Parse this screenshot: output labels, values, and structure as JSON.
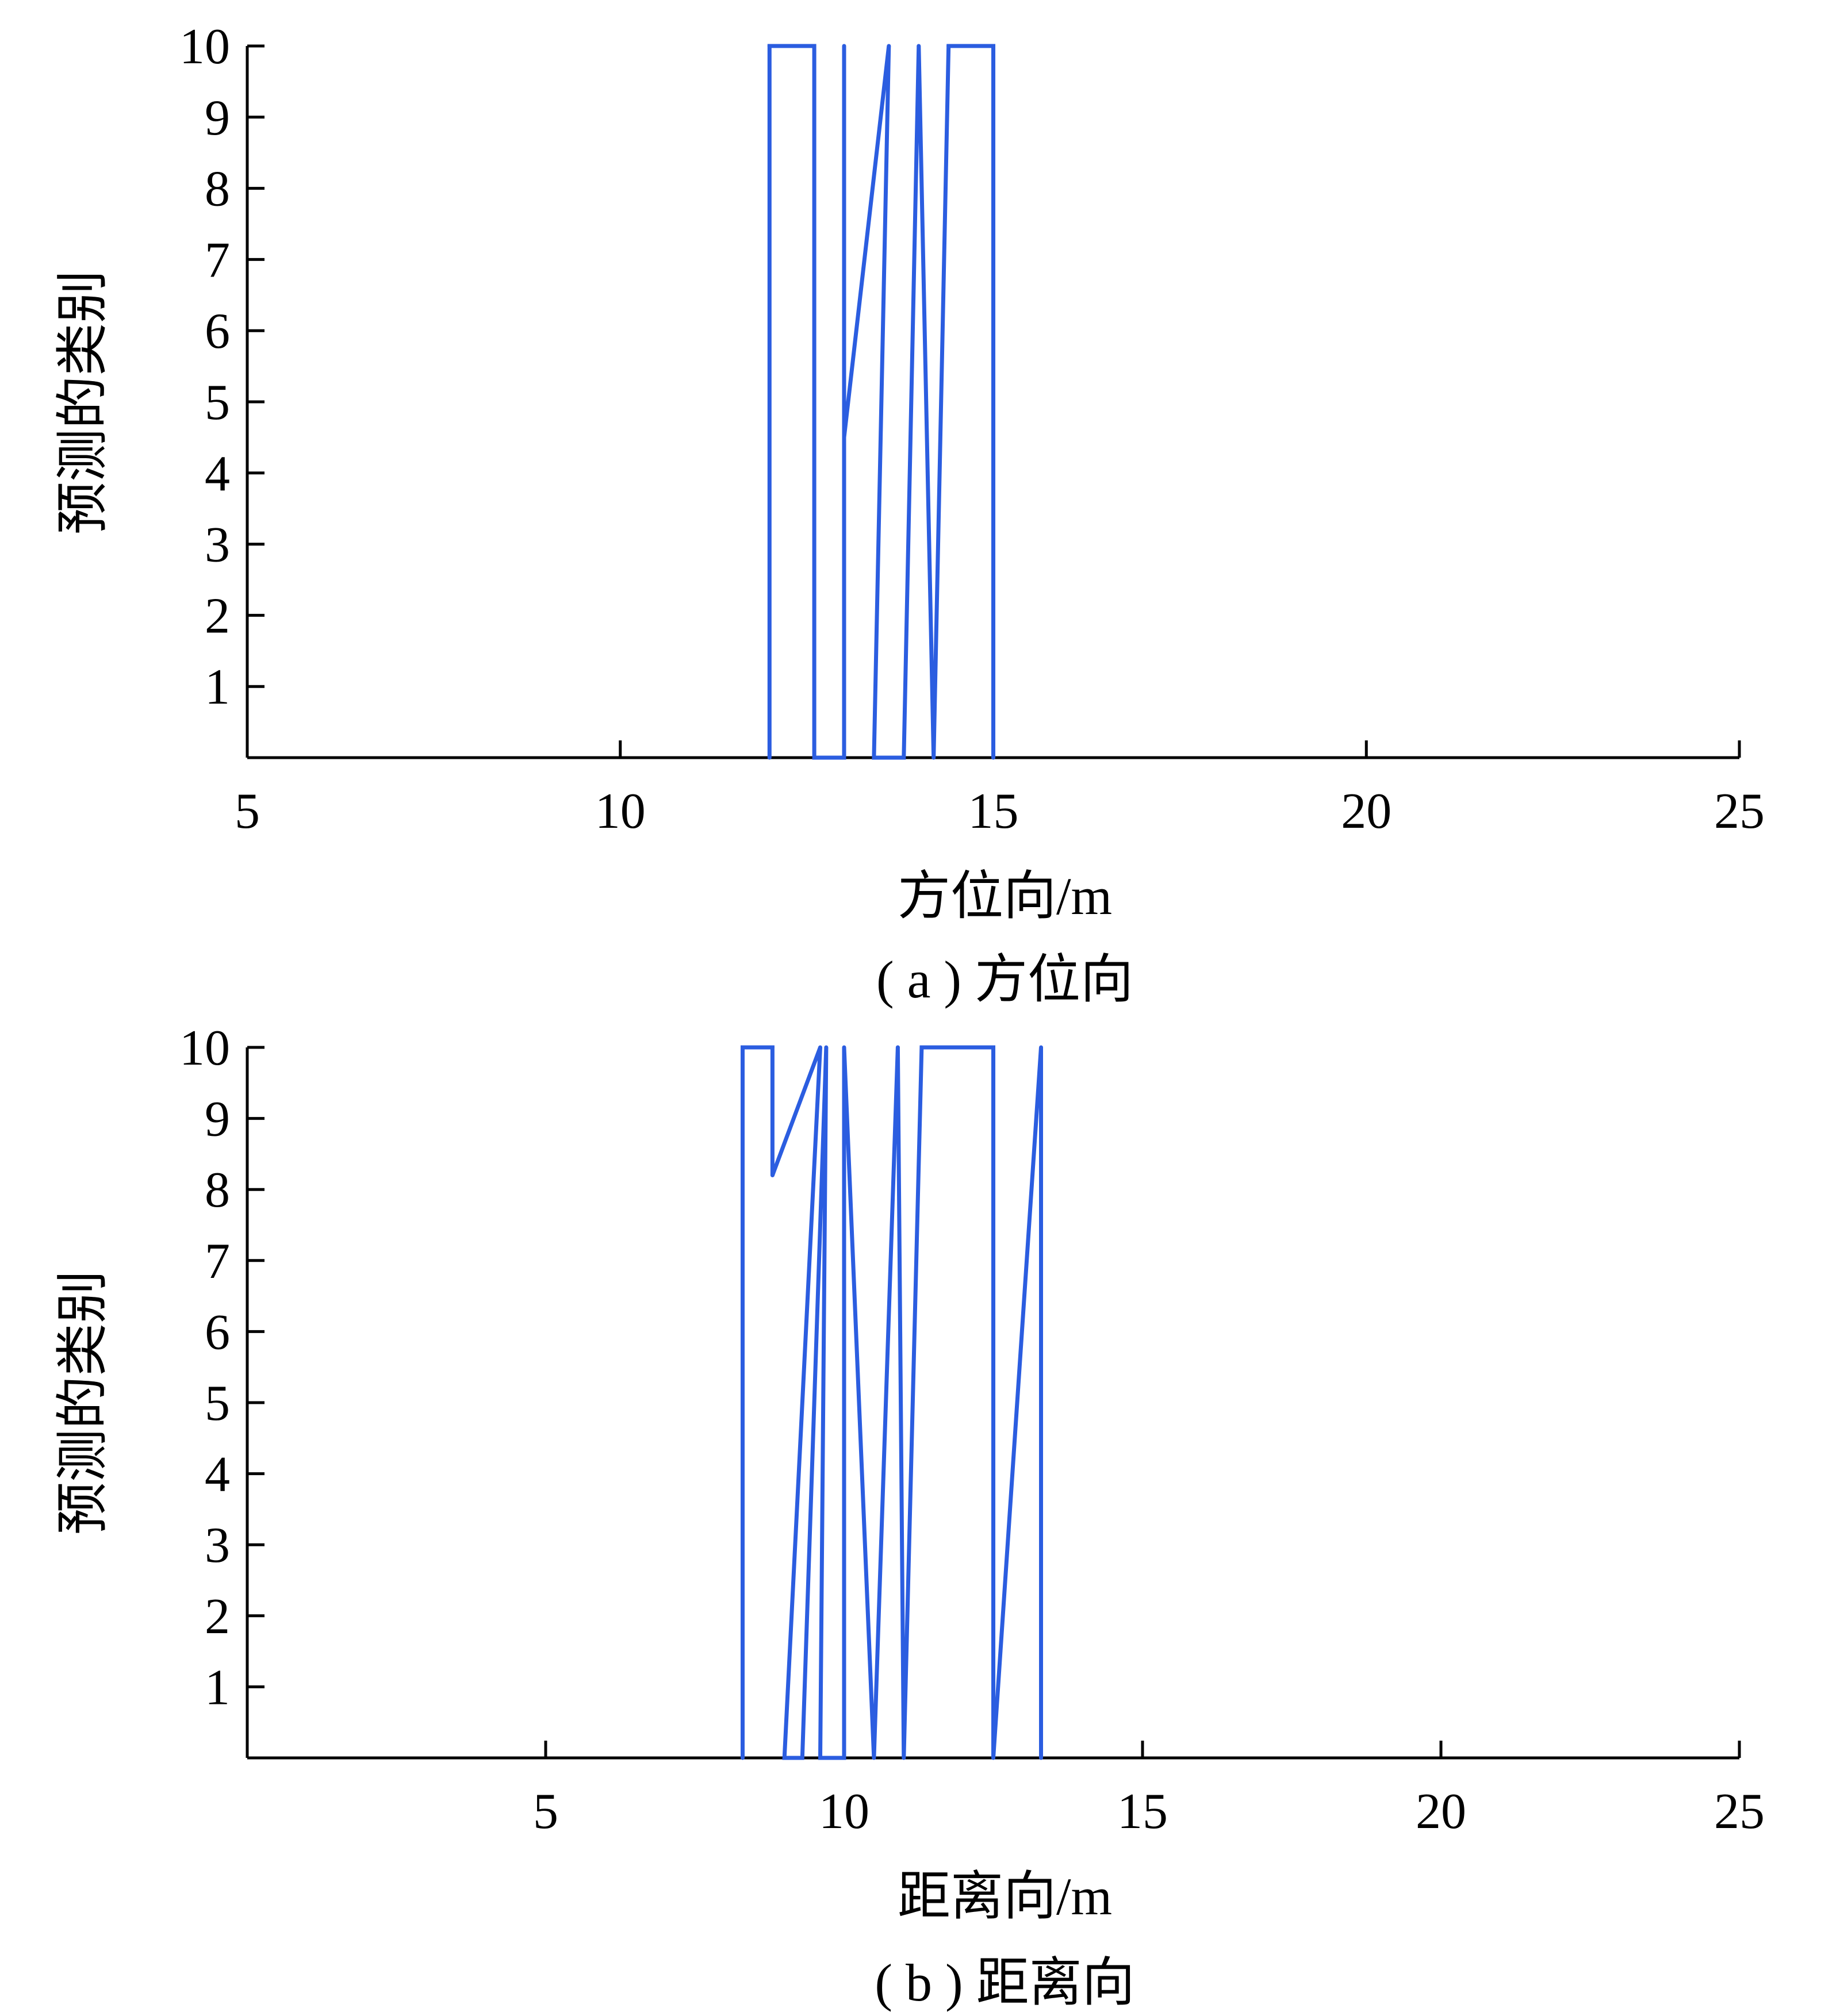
{
  "chart_data": [
    {
      "type": "line",
      "panel": "a",
      "caption": "( a ) 方位向",
      "xlabel": "方位向/m",
      "ylabel": "预测的类别",
      "xlim": [
        5,
        25
      ],
      "ylim": [
        0,
        10
      ],
      "x_ticks": [
        5,
        10,
        15,
        20,
        25
      ],
      "y_ticks": [
        1,
        2,
        3,
        4,
        5,
        6,
        7,
        8,
        9,
        10
      ],
      "x_tick_labels": [
        "5",
        "10",
        "15",
        "20",
        "25"
      ],
      "y_tick_labels": [
        "1",
        "2",
        "3",
        "4",
        "5",
        "6",
        "7",
        "8",
        "9",
        "10"
      ],
      "grid": false,
      "color": "#2b5de0",
      "points": [
        [
          12.0,
          0
        ],
        [
          12.0,
          10
        ],
        [
          12.6,
          10
        ],
        [
          12.6,
          0
        ],
        [
          13.0,
          0
        ],
        [
          13.0,
          10
        ],
        [
          13.0,
          4.5
        ],
        [
          13.6,
          10
        ],
        [
          13.4,
          0
        ],
        [
          13.8,
          0
        ],
        [
          14.0,
          10
        ],
        [
          14.2,
          0
        ],
        [
          14.4,
          10
        ],
        [
          15.0,
          10
        ],
        [
          15.0,
          0
        ]
      ]
    },
    {
      "type": "line",
      "panel": "b",
      "caption": "( b ) 距离向",
      "xlabel": "距离向/m",
      "ylabel": "预测的类别",
      "xlim": [
        0,
        25
      ],
      "ylim": [
        0,
        10
      ],
      "x_ticks": [
        5,
        10,
        15,
        20,
        25
      ],
      "y_ticks": [
        1,
        2,
        3,
        4,
        5,
        6,
        7,
        8,
        9,
        10
      ],
      "x_tick_labels": [
        "5",
        "10",
        "15",
        "20",
        "25"
      ],
      "y_tick_labels": [
        "1",
        "2",
        "3",
        "4",
        "5",
        "6",
        "7",
        "8",
        "9",
        "10"
      ],
      "grid": false,
      "color": "#2b5de0",
      "points": [
        [
          8.3,
          0
        ],
        [
          8.3,
          10
        ],
        [
          8.8,
          10
        ],
        [
          8.8,
          8.2
        ],
        [
          9.6,
          10
        ],
        [
          9.0,
          0
        ],
        [
          9.3,
          0
        ],
        [
          9.7,
          10
        ],
        [
          9.6,
          0
        ],
        [
          10.0,
          0
        ],
        [
          10.0,
          10
        ],
        [
          10.5,
          0
        ],
        [
          10.9,
          10
        ],
        [
          10.9,
          10
        ],
        [
          11.0,
          0
        ],
        [
          11.3,
          10
        ],
        [
          12.5,
          10
        ],
        [
          12.5,
          0
        ],
        [
          13.3,
          10
        ],
        [
          13.3,
          0
        ]
      ]
    }
  ]
}
